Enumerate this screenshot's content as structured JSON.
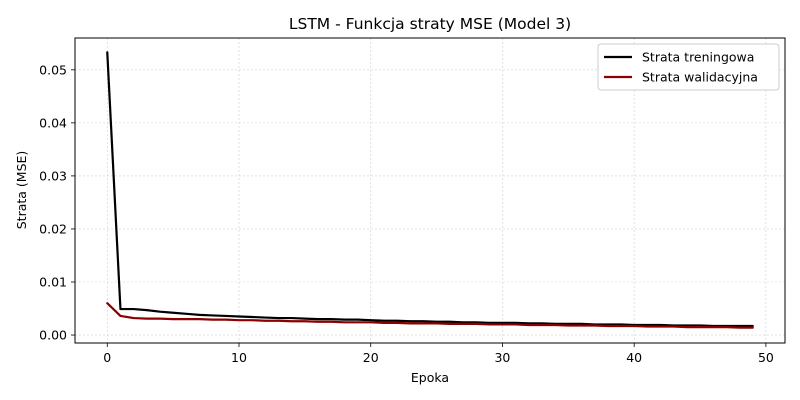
{
  "chart_data": {
    "type": "line",
    "title": "LSTM - Funkcja straty MSE (Model 3)",
    "xlabel": "Epoka",
    "ylabel": "Strata (MSE)",
    "xlim": [
      -2.45,
      51.45
    ],
    "ylim": [
      -0.0015,
      0.056
    ],
    "xticks": [
      0,
      10,
      20,
      30,
      40,
      50
    ],
    "yticks": [
      0.0,
      0.01,
      0.02,
      0.03,
      0.04,
      0.05
    ],
    "xtick_labels": [
      "0",
      "10",
      "20",
      "30",
      "40",
      "50"
    ],
    "ytick_labels": [
      "0.00",
      "0.01",
      "0.02",
      "0.03",
      "0.04",
      "0.05"
    ],
    "grid": true,
    "legend_position": "top-right",
    "series": [
      {
        "name": "Strata treningowa",
        "color": "#000000",
        "x": [
          0,
          1,
          2,
          3,
          4,
          5,
          6,
          7,
          8,
          9,
          10,
          11,
          12,
          13,
          14,
          15,
          16,
          17,
          18,
          19,
          20,
          21,
          22,
          23,
          24,
          25,
          26,
          27,
          28,
          29,
          30,
          31,
          32,
          33,
          34,
          35,
          36,
          37,
          38,
          39,
          40,
          41,
          42,
          43,
          44,
          45,
          46,
          47,
          48,
          49
        ],
        "values": [
          0.0533,
          0.0049,
          0.0049,
          0.0047,
          0.0044,
          0.0042,
          0.004,
          0.0038,
          0.0037,
          0.0036,
          0.0035,
          0.0034,
          0.0033,
          0.0032,
          0.0032,
          0.0031,
          0.003,
          0.003,
          0.0029,
          0.0029,
          0.0028,
          0.0027,
          0.0027,
          0.0026,
          0.0026,
          0.0025,
          0.0025,
          0.0024,
          0.0024,
          0.0023,
          0.0023,
          0.0023,
          0.0022,
          0.0022,
          0.0021,
          0.0021,
          0.0021,
          0.002,
          0.002,
          0.002,
          0.0019,
          0.0019,
          0.0019,
          0.0018,
          0.0018,
          0.0018,
          0.0017,
          0.0017,
          0.0017,
          0.0017
        ]
      },
      {
        "name": "Strata walidacyjna",
        "color": "#8b0000",
        "x": [
          0,
          1,
          2,
          3,
          4,
          5,
          6,
          7,
          8,
          9,
          10,
          11,
          12,
          13,
          14,
          15,
          16,
          17,
          18,
          19,
          20,
          21,
          22,
          23,
          24,
          25,
          26,
          27,
          28,
          29,
          30,
          31,
          32,
          33,
          34,
          35,
          36,
          37,
          38,
          39,
          40,
          41,
          42,
          43,
          44,
          45,
          46,
          47,
          48,
          49
        ],
        "values": [
          0.006,
          0.0036,
          0.0032,
          0.0031,
          0.0031,
          0.003,
          0.003,
          0.003,
          0.0029,
          0.0029,
          0.0028,
          0.0028,
          0.0027,
          0.0027,
          0.0026,
          0.0026,
          0.0025,
          0.0025,
          0.0024,
          0.0024,
          0.0024,
          0.0023,
          0.0023,
          0.0022,
          0.0022,
          0.0022,
          0.0021,
          0.0021,
          0.0021,
          0.002,
          0.002,
          0.002,
          0.0019,
          0.0019,
          0.0019,
          0.0018,
          0.0018,
          0.0018,
          0.0017,
          0.0017,
          0.0017,
          0.0016,
          0.0016,
          0.0016,
          0.0015,
          0.0015,
          0.0015,
          0.0015,
          0.0014,
          0.0014
        ]
      }
    ]
  }
}
